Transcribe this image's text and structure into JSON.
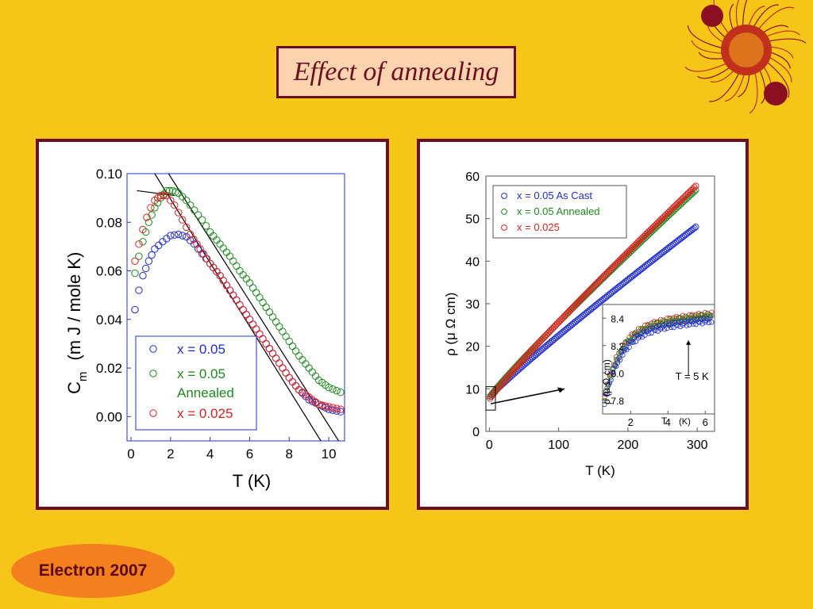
{
  "slide": {
    "title": "Effect of annealing",
    "footer": "Electron 2007"
  },
  "colors": {
    "background": "#f5c518",
    "title_box": "#fbd3ae",
    "border": "#6b1020",
    "badge": "#f47f1f",
    "blue": "#1f2ccf",
    "green": "#1e8a1e",
    "red": "#e02020"
  },
  "chart_data": [
    {
      "type": "scatter",
      "title": "",
      "xlabel": "T   (K)",
      "ylabel_main": "C",
      "ylabel_sub": "m",
      "ylabel_rest": "(m J / mole K)",
      "xlim": [
        -0.2,
        10.8
      ],
      "ylim": [
        -0.01,
        0.1
      ],
      "xticks": [
        "0",
        "2",
        "4",
        "6",
        "8",
        "10"
      ],
      "yticks": [
        "0.00",
        "0.02",
        "0.04",
        "0.06",
        "0.08",
        "0.10"
      ],
      "legend": [
        "x = 0.05",
        "x = 0.05",
        "Annealed",
        "x = 0.025"
      ],
      "legend_position": "bottom-left",
      "series": [
        {
          "name": "x = 0.05",
          "color": "blue",
          "points": [
            [
              0.2,
              0.044
            ],
            [
              0.4,
              0.052
            ],
            [
              0.6,
              0.058
            ],
            [
              0.9,
              0.064
            ],
            [
              1.2,
              0.069
            ],
            [
              1.6,
              0.072
            ],
            [
              2.0,
              0.0745
            ],
            [
              2.4,
              0.075
            ],
            [
              2.8,
              0.074
            ],
            [
              3.2,
              0.071
            ],
            [
              3.6,
              0.067
            ],
            [
              4.0,
              0.063
            ],
            [
              4.5,
              0.058
            ],
            [
              5.0,
              0.052
            ],
            [
              5.5,
              0.046
            ],
            [
              6.0,
              0.04
            ],
            [
              6.5,
              0.034
            ],
            [
              7.0,
              0.028
            ],
            [
              7.5,
              0.022
            ],
            [
              8.0,
              0.016
            ],
            [
              8.5,
              0.011
            ],
            [
              9.0,
              0.007
            ],
            [
              9.5,
              0.005
            ],
            [
              10.0,
              0.003
            ],
            [
              10.6,
              0.002
            ]
          ]
        },
        {
          "name": "x = 0.05 Annealed",
          "color": "green",
          "points": [
            [
              0.2,
              0.059
            ],
            [
              0.4,
              0.066
            ],
            [
              0.6,
              0.072
            ],
            [
              0.9,
              0.08
            ],
            [
              1.2,
              0.086
            ],
            [
              1.5,
              0.09
            ],
            [
              1.8,
              0.093
            ],
            [
              2.1,
              0.093
            ],
            [
              2.4,
              0.092
            ],
            [
              2.8,
              0.089
            ],
            [
              3.2,
              0.085
            ],
            [
              3.6,
              0.081
            ],
            [
              4.0,
              0.076
            ],
            [
              4.5,
              0.071
            ],
            [
              5.0,
              0.066
            ],
            [
              5.5,
              0.06
            ],
            [
              6.0,
              0.055
            ],
            [
              6.5,
              0.049
            ],
            [
              7.0,
              0.043
            ],
            [
              7.5,
              0.037
            ],
            [
              8.0,
              0.031
            ],
            [
              8.5,
              0.025
            ],
            [
              9.0,
              0.02
            ],
            [
              9.5,
              0.015
            ],
            [
              10.0,
              0.012
            ],
            [
              10.6,
              0.01
            ]
          ]
        },
        {
          "name": "x = 0.025",
          "color": "red",
          "points": [
            [
              0.2,
              0.064
            ],
            [
              0.4,
              0.071
            ],
            [
              0.6,
              0.077
            ],
            [
              0.8,
              0.082
            ],
            [
              1.0,
              0.086
            ],
            [
              1.2,
              0.089
            ],
            [
              1.5,
              0.091
            ],
            [
              1.8,
              0.091
            ],
            [
              2.2,
              0.087
            ],
            [
              2.6,
              0.081
            ],
            [
              3.0,
              0.075
            ],
            [
              3.5,
              0.069
            ],
            [
              4.0,
              0.063
            ],
            [
              4.5,
              0.058
            ],
            [
              5.0,
              0.052
            ],
            [
              5.5,
              0.046
            ],
            [
              6.0,
              0.04
            ],
            [
              6.5,
              0.034
            ],
            [
              7.0,
              0.028
            ],
            [
              7.5,
              0.022
            ],
            [
              8.0,
              0.016
            ],
            [
              8.5,
              0.011
            ],
            [
              9.0,
              0.008
            ],
            [
              9.5,
              0.005
            ],
            [
              10.0,
              0.004
            ],
            [
              10.6,
              0.003
            ]
          ]
        }
      ],
      "fit_lines": [
        {
          "from": [
            1.2,
            0.1
          ],
          "to": [
            9.6,
            -0.01
          ]
        },
        {
          "from": [
            1.9,
            0.1
          ],
          "to": [
            10.5,
            -0.01
          ]
        },
        {
          "from": [
            0.3,
            0.093
          ],
          "to": [
            2.2,
            0.091
          ]
        }
      ]
    },
    {
      "type": "scatter",
      "title": "",
      "xlabel": "T    (K)",
      "ylabel": "ρ   (μ Ω  cm)",
      "xlim": [
        -5,
        325
      ],
      "ylim": [
        0,
        60
      ],
      "xticks": [
        "0",
        "100",
        "200",
        "300"
      ],
      "yticks": [
        "0",
        "10",
        "20",
        "30",
        "40",
        "50",
        "60"
      ],
      "legend": [
        "x = 0.05 As Cast",
        "x = 0.05 Annealed",
        "x = 0.025"
      ],
      "legend_position": "top-left",
      "series": [
        {
          "name": "x = 0.05 As Cast",
          "color": "blue",
          "rho0": 8.0,
          "rho300": 48.3
        },
        {
          "name": "x = 0.05 Annealed",
          "color": "green",
          "rho0": 8.0,
          "rho300": 57.0
        },
        {
          "name": "x = 0.025",
          "color": "red",
          "rho0": 7.5,
          "rho300": 58.0
        }
      ],
      "inset": {
        "xlabel": "T",
        "xunit": "(K)",
        "ylabel": "ρ (μ Ω cm)",
        "xlim": [
          0.5,
          6.5
        ],
        "ylim": [
          7.7,
          8.5
        ],
        "xticks": [
          "2",
          "4",
          "6"
        ],
        "yticks": [
          "7.8",
          "8.0",
          "8.2",
          "8.4"
        ],
        "annotation": "T = 5 K"
      }
    }
  ]
}
